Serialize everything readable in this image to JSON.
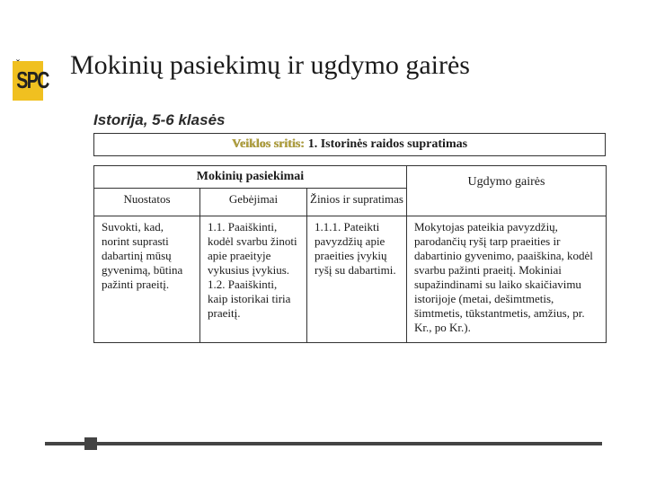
{
  "logo": {
    "text": "SPC",
    "caron": "ˇ"
  },
  "title": "Mokinių pasiekimų ir ugdymo gairės",
  "subtitle": "Istorija, 5-6 klasės",
  "scope": {
    "label": "Veiklos sritis:",
    "value": "1. Istorinės raidos supratimas"
  },
  "table": {
    "header_achievements": "Mokinių pasiekimai",
    "header_guidelines": "Ugdymo gairės",
    "sub_headers": {
      "attitudes": "Nuostatos",
      "abilities": "Gebėjimai",
      "knowledge": "Žinios ir supratimas"
    },
    "row": {
      "attitudes": "Suvokti, kad, norint suprasti dabartinį mūsų gyvenimą, būtina pažinti praeitį.",
      "abilities": "1.1. Paaiškinti, kodėl svarbu žinoti apie praeityje vykusius įvykius.\n1.2. Paaiškinti, kaip istorikai tiria praeitį.",
      "knowledge": "1.1.1. Pateikti pavyzdžių apie praeities įvykių ryšį su dabartimi.",
      "guidelines": "Mokytojas pateikia pavyzdžių, parodančių ryšį tarp praeities ir dabartinio gyvenimo, paaiškina, kodėl svarbu pažinti praeitį. Mokiniai supažindinami su laiko skaičiavimu istorijoje (metai, dešimtmetis, šimtmetis, tūkstantmetis, amžius, pr. Kr., po Kr.)."
    }
  },
  "colors": {
    "logo_bg": "#f0c020",
    "border": "#333333",
    "text": "#1a1a1a",
    "scope_label": "#b0a040",
    "footer": "#444444"
  },
  "typography": {
    "title_fontsize": 30,
    "subtitle_fontsize": 17,
    "body_fontsize": 13
  }
}
